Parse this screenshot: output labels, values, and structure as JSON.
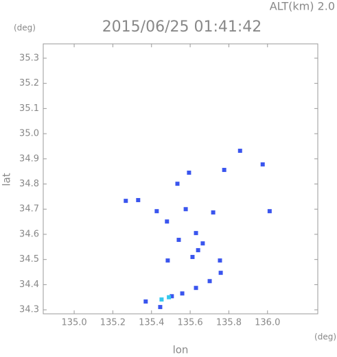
{
  "chart_data": {
    "type": "scatter",
    "title": "2015/06/25 01:41:42",
    "annotation": "ALT(km) 2.0",
    "y_unit": "(deg)",
    "x_unit": "(deg)",
    "xlabel": "lon",
    "ylabel": "lat",
    "xlim": [
      134.84,
      136.26
    ],
    "ylim": [
      34.284,
      35.357
    ],
    "xticks": [
      {
        "value": 135.0,
        "label": "135.0"
      },
      135.2,
      135.4,
      135.6,
      135.8,
      {
        "value": 136.0,
        "label": "136.0"
      }
    ],
    "yticks": [
      34.3,
      34.4,
      34.5,
      34.6,
      34.7,
      34.8,
      34.9,
      {
        "value": 35.0,
        "label": "35.0"
      },
      35.1,
      35.2,
      35.3
    ],
    "series": [
      {
        "color": "#3a55ee",
        "x": [
          135.331,
          135.427,
          135.48,
          135.484,
          135.577,
          135.63,
          135.641,
          135.612,
          135.665,
          135.719,
          135.754,
          135.758,
          135.701,
          135.63,
          135.559,
          135.505,
          135.445,
          135.37,
          135.975,
          136.011,
          135.858,
          135.776,
          135.594,
          135.534,
          135.267,
          135.541
        ],
        "y": [
          34.736,
          34.692,
          34.651,
          34.496,
          34.7,
          34.605,
          34.537,
          34.51,
          34.564,
          34.687,
          34.496,
          34.447,
          34.414,
          34.387,
          34.365,
          34.354,
          34.311,
          34.333,
          34.878,
          34.692,
          34.932,
          34.856,
          34.845,
          34.801,
          34.733,
          34.578
        ]
      },
      {
        "color": "#35c8ee",
        "x": [
          135.452,
          135.49
        ],
        "y": [
          34.341,
          34.35
        ]
      }
    ]
  }
}
